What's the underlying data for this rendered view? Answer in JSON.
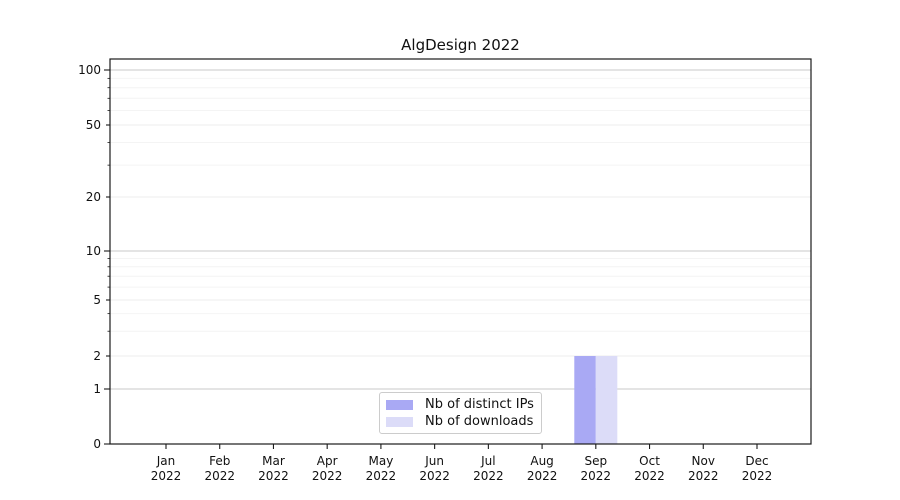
{
  "chart_data": {
    "type": "bar",
    "title": "AlgDesign 2022",
    "x_ticks": [
      {
        "line1": "Jan",
        "line2": "2022"
      },
      {
        "line1": "Feb",
        "line2": "2022"
      },
      {
        "line1": "Mar",
        "line2": "2022"
      },
      {
        "line1": "Apr",
        "line2": "2022"
      },
      {
        "line1": "May",
        "line2": "2022"
      },
      {
        "line1": "Jun",
        "line2": "2022"
      },
      {
        "line1": "Jul",
        "line2": "2022"
      },
      {
        "line1": "Aug",
        "line2": "2022"
      },
      {
        "line1": "Sep",
        "line2": "2022"
      },
      {
        "line1": "Oct",
        "line2": "2022"
      },
      {
        "line1": "Nov",
        "line2": "2022"
      },
      {
        "line1": "Dec",
        "line2": "2022"
      }
    ],
    "categories": [
      "Jan 2022",
      "Feb 2022",
      "Mar 2022",
      "Apr 2022",
      "May 2022",
      "Jun 2022",
      "Jul 2022",
      "Aug 2022",
      "Sep 2022",
      "Oct 2022",
      "Nov 2022",
      "Dec 2022"
    ],
    "series": [
      {
        "name": "Nb of distinct IPs",
        "color": "#a9a9f4",
        "values": [
          0,
          0,
          0,
          0,
          0,
          0,
          0,
          0,
          2,
          0,
          0,
          0
        ]
      },
      {
        "name": "Nb of downloads",
        "color": "#dcdcf8",
        "values": [
          0,
          0,
          0,
          0,
          0,
          0,
          0,
          0,
          2,
          0,
          0,
          0
        ]
      }
    ],
    "y_ticks": [
      {
        "value": 0,
        "label": "0"
      },
      {
        "value": 1,
        "label": "1"
      },
      {
        "value": 2,
        "label": "2"
      },
      {
        "value": 5,
        "label": "5"
      },
      {
        "value": 10,
        "label": "10"
      },
      {
        "value": 20,
        "label": "20"
      },
      {
        "value": 50,
        "label": "50"
      },
      {
        "value": 100,
        "label": "100"
      }
    ],
    "y_minor_ticks": [
      3,
      4,
      6,
      7,
      8,
      9,
      30,
      40,
      60,
      70,
      80,
      90
    ],
    "y_scale": "symlog",
    "ylim": [
      0,
      115
    ],
    "grid": true,
    "legend_position": "lower center",
    "colors": {
      "background": "#ffffff",
      "spine": "#1a1a1a",
      "grid_major": "#c9c9c9",
      "grid_sub": "#ececec",
      "grid_minor": "#f4f4f4",
      "text": "#111111"
    }
  }
}
